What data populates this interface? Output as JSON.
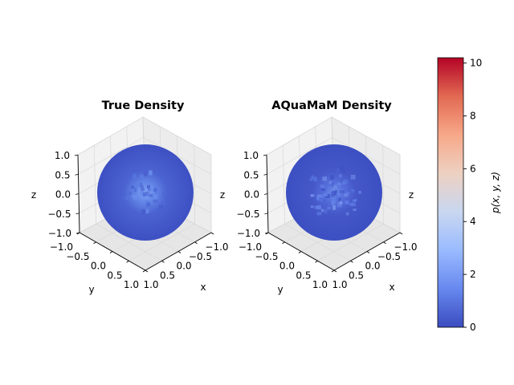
{
  "chart_data": [
    {
      "type": "heatmap",
      "title": "True Density",
      "xlabel": "x",
      "ylabel": "y",
      "zlabel": "z",
      "xticks": [
        "−1.0",
        "−0.5",
        "0.0",
        "0.5",
        "1.0"
      ],
      "yticks": [
        "−1.0",
        "−0.5",
        "0.0",
        "0.5",
        "1.0"
      ],
      "zticks": [
        "1.0",
        "0.5",
        "0.0",
        "−0.5",
        "−1.0"
      ],
      "xlim": [
        -1,
        1
      ],
      "ylim": [
        -1,
        1
      ],
      "zlim": [
        -1,
        1
      ],
      "surface": "unit sphere",
      "density_peak": 2.5
    },
    {
      "type": "heatmap",
      "title": "AQuaMaM Density",
      "xlabel": "x",
      "ylabel": "y",
      "zlabel": "z",
      "xticks": [
        "−1.0",
        "−0.5",
        "0.0",
        "0.5",
        "1.0"
      ],
      "yticks": [
        "−1.0",
        "−0.5",
        "0.0",
        "0.5",
        "1.0"
      ],
      "zticks": [
        "1.0",
        "0.5",
        "0.0",
        "−0.5",
        "−1.0"
      ],
      "xlim": [
        -1,
        1
      ],
      "ylim": [
        -1,
        1
      ],
      "zlim": [
        -1,
        1
      ],
      "surface": "unit sphere",
      "density_peak": 2.0
    }
  ],
  "colorbar": {
    "label": "p(x, y, z)",
    "range": [
      0,
      10.2
    ],
    "ticks": [
      "0",
      "2",
      "4",
      "6",
      "8",
      "10"
    ],
    "colormap": "coolwarm",
    "colors": [
      "#3b4cc0",
      "#6788ee",
      "#9abbff",
      "#c9d7f0",
      "#edd1c2",
      "#f7a889",
      "#e26952",
      "#b40426"
    ]
  }
}
